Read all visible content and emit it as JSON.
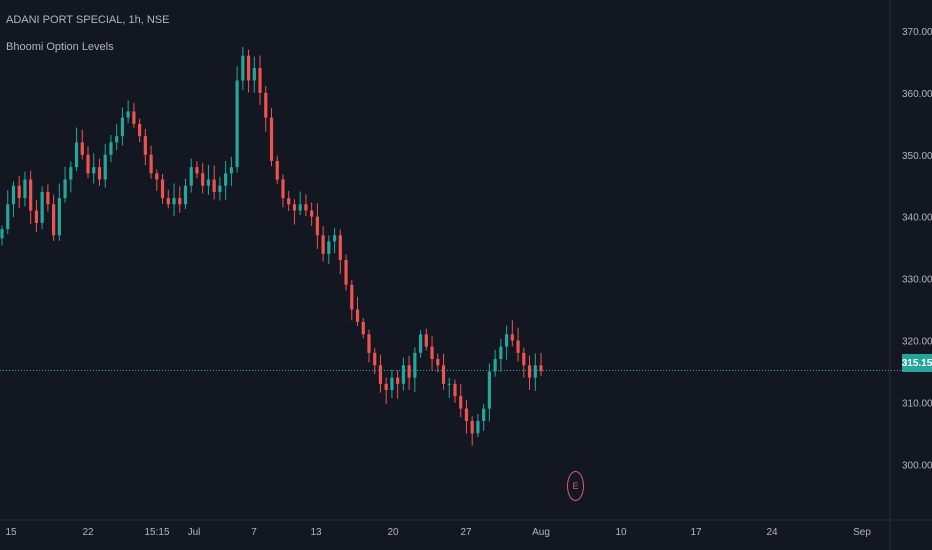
{
  "header": {
    "symbol_line": "ADANI PORT SPECIAL, 1h, NSE",
    "indicator_name": "Bhoomi Option Levels"
  },
  "earnings_badge": {
    "label": "E"
  },
  "colors": {
    "background": "#131722",
    "up": "#26a69a",
    "down": "#ef5350",
    "level_line": "#26a69a",
    "axis_text": "#b2b5be"
  },
  "chart_data": {
    "type": "candlestick",
    "ylim": [
      291,
      375
    ],
    "grid": false,
    "y_ticks": [
      "370.00",
      "360.00",
      "350.00",
      "340.00",
      "330.00",
      "320.00",
      "310.00",
      "300.00"
    ],
    "x_ticks": [
      "15",
      "22",
      "15:15",
      "Jul",
      "7",
      "13",
      "20",
      "27",
      "Aug",
      "10",
      "17",
      "24",
      "Sep"
    ],
    "last_price": "315.15",
    "level_line_value": 315.15,
    "close_series": [
      338,
      342,
      345,
      343,
      346,
      341,
      339,
      344,
      342,
      337,
      343,
      346,
      348,
      352,
      350,
      347,
      348,
      346,
      350,
      352,
      353,
      356,
      357,
      355,
      353,
      350,
      347,
      346,
      343,
      342,
      343,
      342,
      345,
      348,
      347,
      345,
      346,
      344,
      345,
      347,
      348,
      362,
      366,
      362,
      364,
      360,
      356,
      349,
      346,
      343,
      342,
      341,
      342,
      341,
      340,
      337,
      334,
      336,
      337,
      333,
      329,
      325,
      323,
      321,
      318,
      316,
      313,
      312,
      314,
      313,
      316,
      314,
      318,
      321,
      319,
      317,
      316,
      313,
      313,
      311,
      309,
      307,
      305,
      307,
      309,
      315,
      317,
      319,
      321,
      320,
      318,
      316,
      314,
      316,
      315
    ]
  }
}
